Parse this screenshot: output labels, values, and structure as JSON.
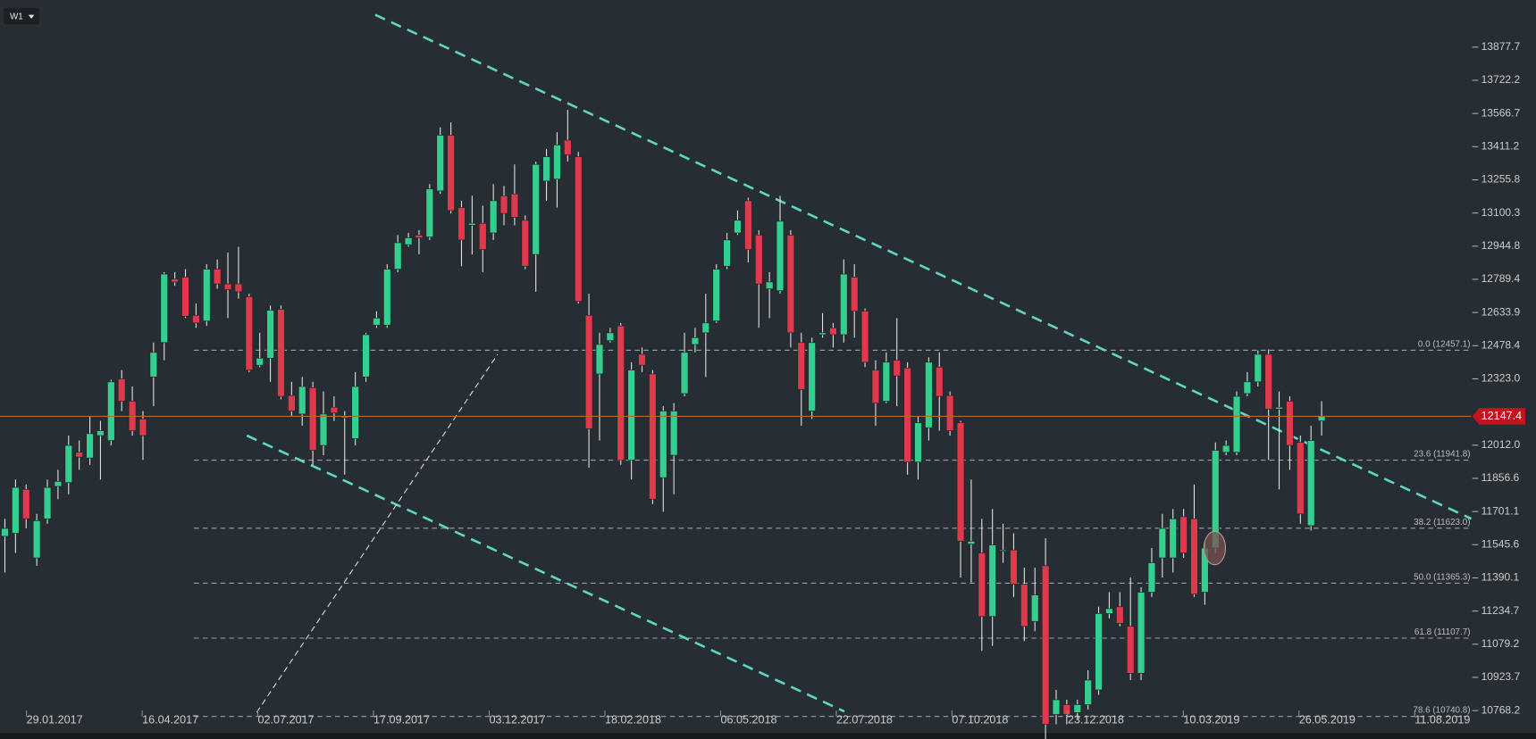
{
  "chart_data": {
    "type": "candlestick",
    "timeframe": "W1",
    "up_color": "#34cf8f",
    "down_color": "#e0394d",
    "ylim": [
      10658.5,
      14098
    ],
    "yticks": [
      13877.7,
      13722.2,
      13566.7,
      13411.2,
      13255.8,
      13100.3,
      12944.8,
      12789.4,
      12633.9,
      12478.4,
      {
        "value": 12323,
        "label": "12323.0"
      },
      {
        "value": 12012,
        "label": "12012.0"
      },
      11856.6,
      11701.1,
      11545.6,
      11390.1,
      11234.7,
      11079.2,
      10923.7,
      10768.2
    ],
    "xtick_labels": [
      "29.01.2017",
      "16.04.2017",
      "02.07.2017",
      "17.09.2017",
      "03.12.2017",
      "18.02.2018",
      "06.05.2018",
      "22.07.2018",
      "07.10.2018",
      "23.12.2018",
      "10.03.2019",
      "26.05.2019",
      "11.08.2019"
    ],
    "fib_levels": [
      {
        "value": 12457.1,
        "label": "0.0 (12457.1)"
      },
      {
        "value": 11941.8,
        "label": "23.6 (11941.8)"
      },
      {
        "value": 11623.0,
        "label": "38.2 (11623.0)"
      },
      {
        "value": 11365.3,
        "label": "50.0 (11365.3)"
      },
      {
        "value": 11107.7,
        "label": "61.8 (11107.7)"
      },
      {
        "value": 10740.8,
        "label": "78.6 (10740.8)"
      }
    ],
    "open": [
      11585,
      11599,
      11805,
      11484,
      11667,
      11819,
      11837,
      11979,
      11952,
      12057,
      12034,
      12323,
      12218,
      12135,
      12332,
      12493,
      12791,
      12800,
      12621,
      12594,
      12837,
      12768,
      12768,
      12708,
      12387,
      12420,
      12649,
      12245,
      12158,
      12282,
      12011,
      12190,
      12149,
      12043,
      12332,
      12575,
      12575,
      12837,
      12952,
      12997,
      12988,
      13204,
      13465,
      13126,
      13043,
      13052,
      13007,
      13181,
      13190,
      13066,
      12906,
      13250,
      13259,
      13442,
      13364,
      12621,
      12346,
      12502,
      12571,
      11943,
      12438,
      12346,
      11860,
      11965,
      12254,
      12484,
      12539,
      12594,
      12851,
      13007,
      13158,
      12997,
      12745,
      12736,
      12997,
      12493,
      12172,
      12530,
      12562,
      12530,
      12800,
      12640,
      12364,
      12218,
      12410,
      12374,
      11933,
      12094,
      12378,
      12245,
      12117,
      11548,
      11507,
      11209,
      11516,
      11521,
      11360,
      11186,
      11447,
      10750,
      10796,
      10759,
      10796,
      10865,
      11223,
      11255,
      11163,
      10943,
      11323,
      11484,
      11484,
      11677,
      11667,
      11323,
      11530,
      11979,
      11979,
      12254,
      12309,
      12438,
      12181,
      12218,
      12025,
      11635,
      12126
    ],
    "high": [
      11667,
      11851,
      11828,
      11690,
      11851,
      11897,
      12057,
      12034,
      12149,
      12126,
      12319,
      12364,
      12287,
      12172,
      12493,
      12823,
      12823,
      12837,
      12676,
      12860,
      12883,
      12915,
      12942,
      12722,
      12539,
      12667,
      12667,
      12309,
      12332,
      12309,
      12264,
      12241,
      12172,
      12355,
      12539,
      12640,
      12860,
      12997,
      13007,
      13020,
      13236,
      13502,
      13525,
      13158,
      13181,
      13135,
      13236,
      13227,
      13328,
      13089,
      13341,
      13401,
      13479,
      13584,
      13387,
      12722,
      12539,
      12562,
      12585,
      12401,
      12470,
      12364,
      12195,
      12209,
      12539,
      12562,
      12722,
      12860,
      13007,
      13112,
      13172,
      13020,
      12823,
      13181,
      13020,
      12539,
      12516,
      12631,
      12585,
      12883,
      12860,
      12653,
      12410,
      12447,
      12608,
      12401,
      12149,
      12424,
      12447,
      12264,
      12126,
      11851,
      11667,
      11713,
      11644,
      11599,
      11438,
      11438,
      11576,
      10865,
      10819,
      10819,
      10957,
      11255,
      11323,
      11323,
      11392,
      11346,
      11530,
      11690,
      11713,
      11713,
      11828,
      11553,
      12025,
      12034,
      12264,
      12355,
      12456,
      12461,
      12264,
      12241,
      12057,
      12103,
      12218
    ],
    "low": [
      11415,
      11507,
      11622,
      11447,
      11644,
      11759,
      11782,
      11897,
      11920,
      11851,
      12011,
      12172,
      12057,
      11943,
      12195,
      12410,
      12759,
      12608,
      12562,
      12571,
      12745,
      12608,
      12699,
      12355,
      12378,
      12309,
      12227,
      12149,
      12103,
      11920,
      11965,
      12126,
      11874,
      12011,
      12309,
      12562,
      12562,
      12823,
      12942,
      12906,
      12974,
      13190,
      13098,
      12851,
      12906,
      12823,
      12974,
      13043,
      13043,
      12837,
      12731,
      13158,
      13126,
      13341,
      12676,
      11906,
      12034,
      12493,
      11920,
      11851,
      12355,
      11736,
      11700,
      11782,
      12241,
      12447,
      12332,
      12585,
      12837,
      12997,
      12869,
      12562,
      12608,
      12722,
      12470,
      12103,
      12135,
      12516,
      12470,
      12493,
      12516,
      12378,
      12103,
      12209,
      12195,
      11874,
      11851,
      12034,
      12080,
      12057,
      11392,
      11369,
      11048,
      11071,
      11461,
      11301,
      11094,
      11140,
      10613,
      10704,
      10704,
      10727,
      10773,
      10842,
      11200,
      11163,
      10911,
      10911,
      11301,
      11392,
      11415,
      11484,
      11301,
      11264,
      11507,
      11965,
      11965,
      12241,
      12287,
      11943,
      11805,
      11897,
      11644,
      11612,
      12057
    ],
    "close": [
      11622,
      11814,
      11667,
      11658,
      11814,
      11842,
      12011,
      11956,
      12066,
      12080,
      12309,
      12218,
      12080,
      12057,
      12447,
      12814,
      12777,
      12617,
      12585,
      12837,
      12768,
      12741,
      12731,
      12364,
      12420,
      12644,
      12241,
      12172,
      12287,
      11988,
      12158,
      12163,
      12140,
      12287,
      12530,
      12608,
      12837,
      12961,
      12984,
      12984,
      13213,
      13465,
      13112,
      12974,
      13052,
      12929,
      13158,
      13098,
      13080,
      12851,
      13328,
      13364,
      13419,
      13373,
      12686,
      12089,
      12484,
      12539,
      11943,
      12364,
      12387,
      11759,
      12172,
      12172,
      12447,
      12516,
      12585,
      12837,
      12974,
      13066,
      12929,
      12768,
      12777,
      13062,
      12539,
      12273,
      12493,
      12539,
      12530,
      12814,
      12640,
      12401,
      12209,
      12401,
      12337,
      11933,
      12117,
      12401,
      12241,
      12080,
      11562,
      11562,
      11209,
      11544,
      11521,
      11360,
      11163,
      11310,
      10704,
      10819,
      10750,
      10796,
      10911,
      11223,
      11246,
      11177,
      10943,
      11323,
      11461,
      11622,
      11667,
      11507,
      11314,
      11530,
      11988,
      12011,
      12241,
      12309,
      12438,
      12181,
      12190,
      12011,
      11690,
      12034,
      12147.4
    ]
  }
}
